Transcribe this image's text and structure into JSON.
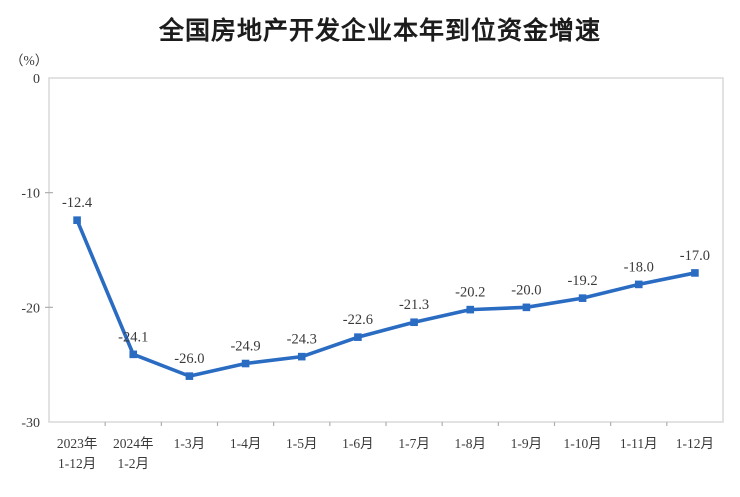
{
  "chart_data": {
    "type": "line",
    "title": "全国房地产开发企业本年到位资金增速",
    "unit_label": "（%）",
    "categories": [
      "2023年\n1-12月",
      "2024年\n1-2月",
      "1-3月",
      "1-4月",
      "1-5月",
      "1-6月",
      "1-7月",
      "1-8月",
      "1-9月",
      "1-10月",
      "1-11月",
      "1-12月"
    ],
    "values": [
      -12.4,
      -24.1,
      -26.0,
      -24.9,
      -24.3,
      -22.6,
      -21.3,
      -20.2,
      -20.0,
      -19.2,
      -18.0,
      -17.0
    ],
    "data_labels": [
      "-12.4",
      "-24.1",
      "-26.0",
      "-24.9",
      "-24.3",
      "-22.6",
      "-21.3",
      "-20.2",
      "-20.0",
      "-19.2",
      "-18.0",
      "-17.0"
    ],
    "y_ticks": [
      "0",
      "-10",
      "-20",
      "-30"
    ],
    "ylim": [
      -30,
      0
    ],
    "grid": false,
    "legend_position": "none",
    "marker": "square",
    "line_color": "#2b6cc3",
    "text_color": "#3a3a3a",
    "frame_color": "#d9d9d9",
    "tick_color": "#aeaeae"
  }
}
